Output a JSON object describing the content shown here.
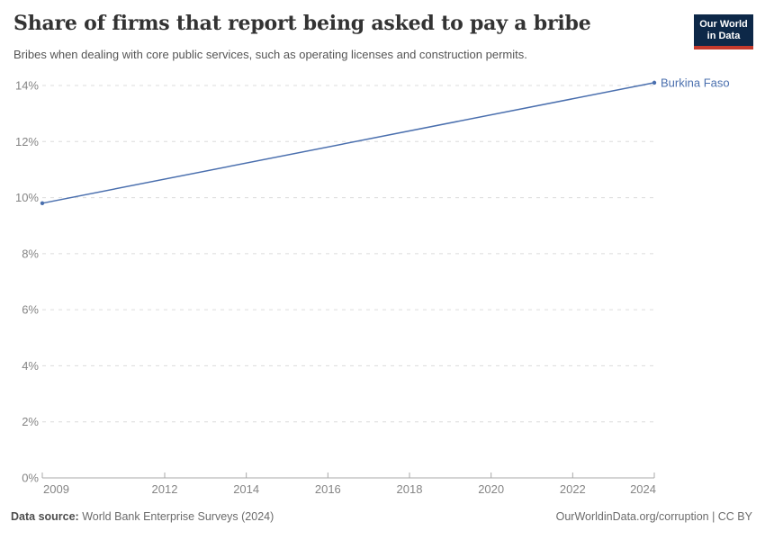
{
  "header": {
    "title": "Share of firms that report being asked to pay a bribe",
    "subtitle": "Bribes when dealing with core public services, such as operating licenses and construction permits.",
    "logo": {
      "line1": "Our World",
      "line2": "in Data",
      "bg_color": "#0d2848",
      "accent_color": "#c43a2d"
    }
  },
  "chart_data": {
    "type": "line",
    "title": "Share of firms that report being asked to pay a bribe",
    "xlabel": "",
    "ylabel": "",
    "xlim": [
      2009,
      2024
    ],
    "ylim": [
      0,
      14
    ],
    "x_ticks": [
      2009,
      2012,
      2014,
      2016,
      2018,
      2020,
      2022,
      2024
    ],
    "y_ticks": [
      0,
      2,
      4,
      6,
      8,
      10,
      12,
      14
    ],
    "y_tick_suffix": "%",
    "grid": "horizontal-dashed",
    "legend_position": "end-of-line-label",
    "series": [
      {
        "name": "Burkina Faso",
        "color": "#4a6fae",
        "points": [
          {
            "x": 2009,
            "y": 9.8
          },
          {
            "x": 2024,
            "y": 14.1
          }
        ]
      }
    ],
    "colors": {
      "grid": "#dcdcdc",
      "axis": "#a8a8a8",
      "tick_label": "#858585"
    }
  },
  "footer": {
    "source_label": "Data source:",
    "source_value": "World Bank Enterprise Surveys (2024)",
    "attribution": "OurWorldinData.org/corruption | CC BY"
  }
}
